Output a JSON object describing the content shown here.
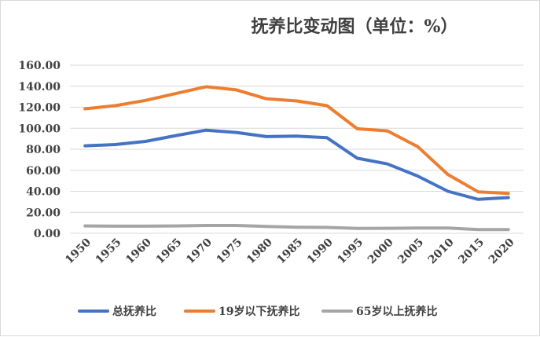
{
  "chart_data": {
    "type": "line",
    "title": "抚养比变动图（单位：%）",
    "xlabel": "",
    "ylabel": "",
    "x": [
      "1950",
      "1955",
      "1960",
      "1965",
      "1970",
      "1975",
      "1980",
      "1985",
      "1990",
      "1995",
      "2000",
      "2005",
      "2010",
      "2015",
      "2020"
    ],
    "y_ticks": [
      "0.00",
      "20.00",
      "40.00",
      "60.00",
      "80.00",
      "100.00",
      "120.00",
      "140.00",
      "160.00"
    ],
    "ylim": [
      0,
      160
    ],
    "grid": true,
    "legend_position": "bottom",
    "series": [
      {
        "name": "总抚养比",
        "color": "#4472c4",
        "values": [
          83.3,
          84.5,
          87.5,
          93.0,
          98.2,
          96.0,
          92.0,
          92.5,
          91.0,
          71.5,
          66.0,
          54.5,
          40.0,
          32.3,
          34.0
        ]
      },
      {
        "name": "19岁以下抚养比",
        "color": "#ed7d31",
        "values": [
          118.5,
          121.5,
          126.5,
          133.0,
          139.5,
          136.5,
          128.0,
          126.0,
          121.5,
          99.5,
          97.5,
          82.5,
          56.0,
          39.5,
          38.0
        ]
      },
      {
        "name": "65岁以上抚养比",
        "color": "#a5a5a5",
        "values": [
          7.0,
          6.8,
          6.8,
          7.0,
          7.5,
          7.5,
          6.5,
          5.8,
          5.6,
          4.6,
          4.8,
          5.0,
          5.0,
          3.5,
          3.5
        ]
      }
    ]
  }
}
